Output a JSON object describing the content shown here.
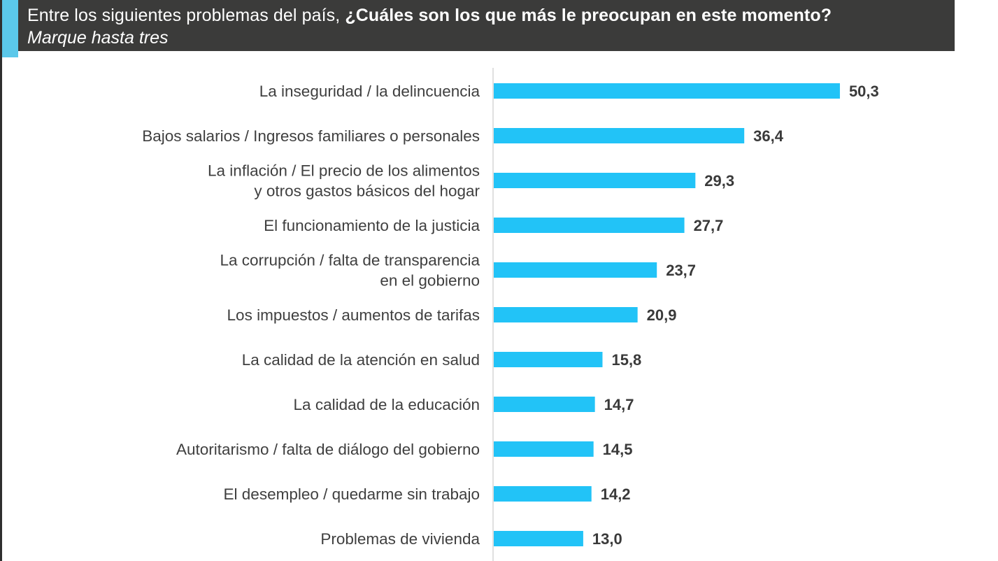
{
  "header": {
    "title_regular": "Entre los siguientes problemas del país, ",
    "title_bold": "¿Cuáles son los que más le preocupan en este momento?",
    "subtitle": "Marque hasta tres"
  },
  "colors": {
    "bar": "#22c3f7",
    "header_bg": "#3b3b3a",
    "accent": "#5bc8ea",
    "text": "#3f3f3f"
  },
  "chart_data": {
    "type": "bar",
    "orientation": "horizontal",
    "title": "Entre los siguientes problemas del país, ¿Cuáles son los que más le preocupan en este momento?",
    "subtitle": "Marque hasta tres",
    "xlabel": "",
    "ylabel": "",
    "xlim": [
      0,
      55
    ],
    "grid": false,
    "legend": "none",
    "decimal_separator": ",",
    "categories": [
      [
        "La inseguridad / la delincuencia"
      ],
      [
        "Bajos salarios / Ingresos familiares o personales"
      ],
      [
        "La inflación / El precio de los alimentos",
        "y otros gastos básicos del hogar"
      ],
      [
        "El funcionamiento de la justicia"
      ],
      [
        "La corrupción / falta de transparencia",
        "en el gobierno"
      ],
      [
        "Los impuestos / aumentos de tarifas"
      ],
      [
        "La calidad de la atención en salud"
      ],
      [
        "La calidad de la educación"
      ],
      [
        "Autoritarismo / falta de diálogo del gobierno"
      ],
      [
        "El desempleo / quedarme sin trabajo"
      ],
      [
        "Problemas de vivienda"
      ]
    ],
    "values": [
      50.3,
      36.4,
      29.3,
      27.7,
      23.7,
      20.9,
      15.8,
      14.7,
      14.5,
      14.2,
      13.0
    ],
    "value_labels": [
      "50,3",
      "36,4",
      "29,3",
      "27,7",
      "23,7",
      "20,9",
      "15,8",
      "14,7",
      "14,5",
      "14,2",
      "13,0"
    ]
  }
}
